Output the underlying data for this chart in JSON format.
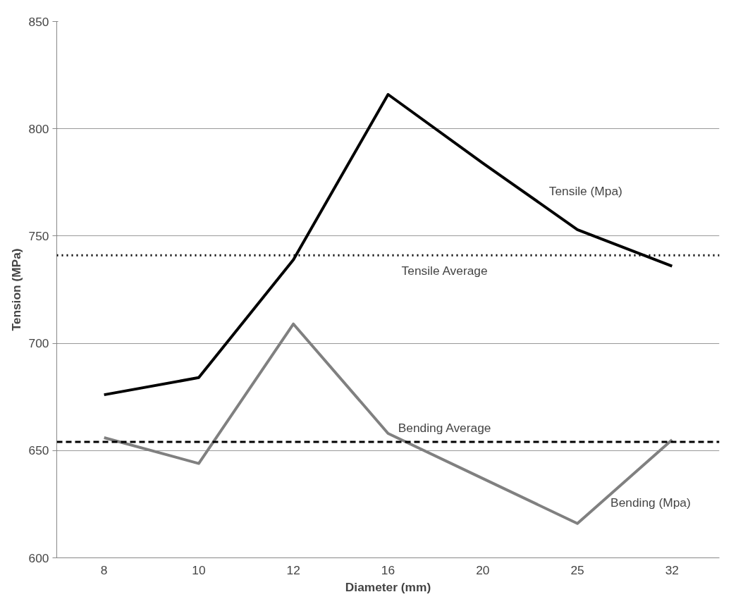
{
  "chart_data": {
    "type": "line",
    "xlabel": "Diameter (mm)",
    "ylabel": "Tension (MPa)",
    "categories": [
      "8",
      "10",
      "12",
      "16",
      "20",
      "25",
      "32"
    ],
    "series": [
      {
        "name": "Tensile (Mpa)",
        "color": "#000000",
        "values": [
          676,
          684,
          739,
          816,
          784,
          753,
          736
        ]
      },
      {
        "name": "Bending (Mpa)",
        "color": "#808080",
        "values": [
          656,
          644,
          709,
          658,
          637,
          616,
          655
        ]
      }
    ],
    "ref_lines": [
      {
        "axis": "y",
        "value": 741,
        "label": "Tensile Average",
        "color": "#000000",
        "line_style": "dotted"
      },
      {
        "axis": "y",
        "value": 654,
        "label": "Bending Average",
        "color": "#000000",
        "line_style": "dashed"
      }
    ],
    "ylim": [
      600,
      850
    ],
    "yticks": [
      600,
      650,
      700,
      750,
      800,
      850
    ],
    "grid": "y",
    "marker": "none",
    "line_style": "solid"
  }
}
